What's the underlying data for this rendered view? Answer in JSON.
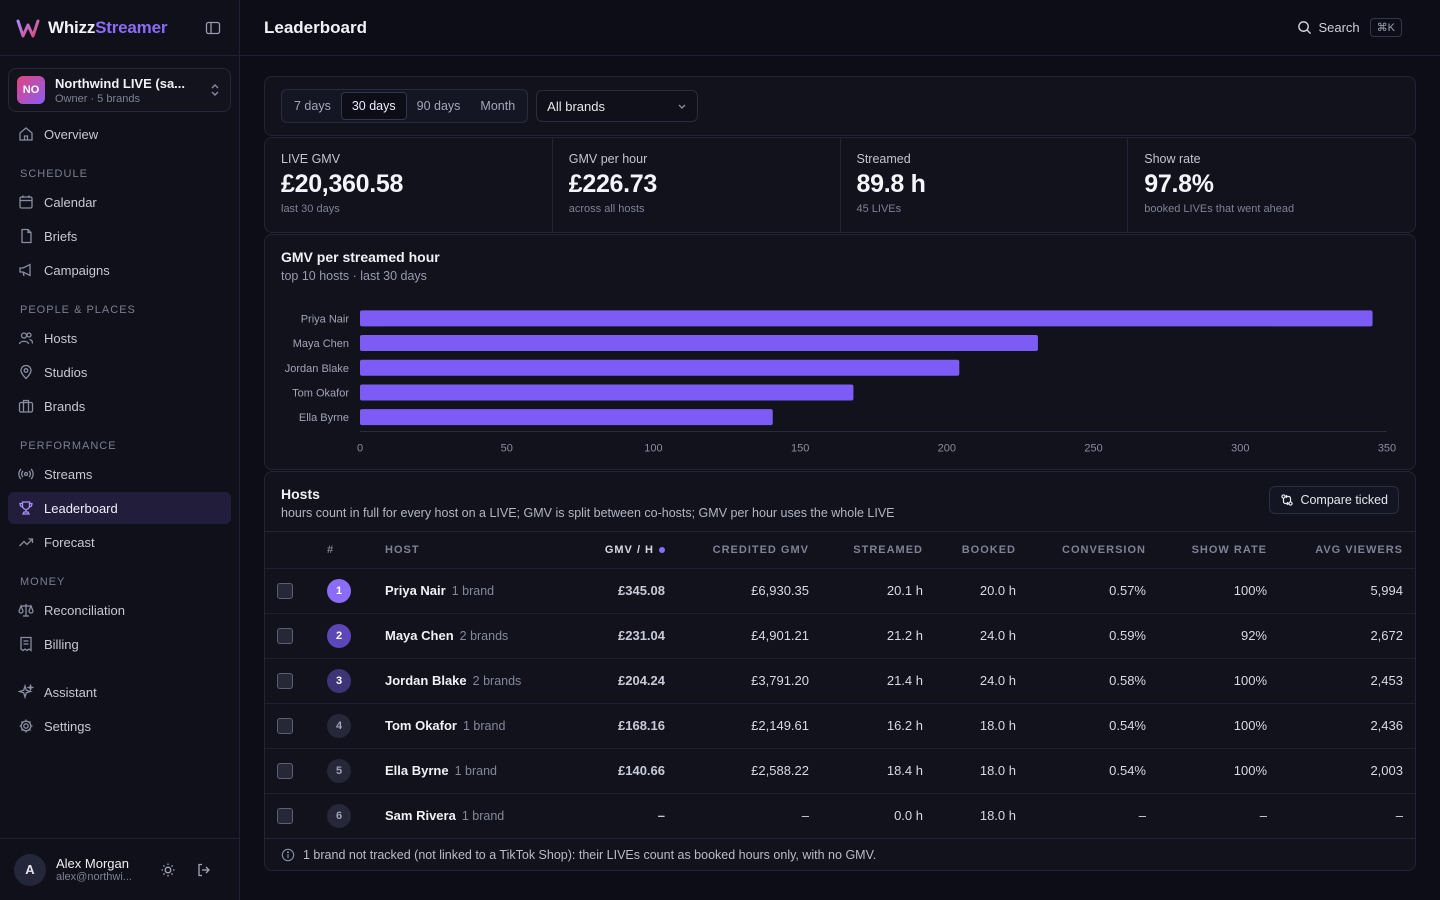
{
  "app": {
    "name_part1": "Whizz",
    "name_part2": "Streamer"
  },
  "org": {
    "initials": "NO",
    "name": "Northwind LIVE (sa...",
    "subtitle": "Owner · 5 brands"
  },
  "nav": {
    "overview": "Overview",
    "schedule_section": "SCHEDULE",
    "calendar": "Calendar",
    "briefs": "Briefs",
    "campaigns": "Campaigns",
    "people_section": "PEOPLE & PLACES",
    "hosts": "Hosts",
    "studios": "Studios",
    "brands": "Brands",
    "performance_section": "PERFORMANCE",
    "streams": "Streams",
    "leaderboard": "Leaderboard",
    "forecast": "Forecast",
    "money_section": "MONEY",
    "reconciliation": "Reconciliation",
    "billing": "Billing",
    "assistant": "Assistant",
    "settings": "Settings"
  },
  "user": {
    "initial": "A",
    "name": "Alex Morgan",
    "email": "alex@northwi..."
  },
  "topbar": {
    "title": "Leaderboard",
    "search_label": "Search",
    "search_shortcut": "⌘K"
  },
  "filters": {
    "periods": [
      "7 days",
      "30 days",
      "90 days",
      "Month"
    ],
    "active_period": "30 days",
    "brand_select": "All brands"
  },
  "kpis": [
    {
      "label": "LIVE GMV",
      "value": "£20,360.58",
      "sub": "last 30 days"
    },
    {
      "label": "GMV per hour",
      "value": "£226.73",
      "sub": "across all hosts"
    },
    {
      "label": "Streamed",
      "value": "89.8 h",
      "sub": "45 LIVEs"
    },
    {
      "label": "Show rate",
      "value": "97.8%",
      "sub": "booked LIVEs that went ahead"
    }
  ],
  "chart": {
    "title": "GMV per streamed hour",
    "subtitle": "top 10 hosts · last 30 days"
  },
  "chart_data": {
    "type": "bar",
    "orientation": "horizontal",
    "categories": [
      "Priya Nair",
      "Maya Chen",
      "Jordan Blake",
      "Tom Okafor",
      "Ella Byrne"
    ],
    "values": [
      345.08,
      231.04,
      204.24,
      168.16,
      140.66
    ],
    "xlim": [
      0,
      350
    ],
    "xticks": [
      0,
      50,
      100,
      150,
      200,
      250,
      300,
      350
    ],
    "bar_color": "#7c5cf5",
    "grid": false
  },
  "table": {
    "title": "Hosts",
    "subtitle": "hours count in full for every host on a LIVE; GMV is split between co-hosts; GMV per hour uses the whole LIVE",
    "compare_label": "Compare ticked",
    "columns": [
      "#",
      "HOST",
      "GMV / H",
      "CREDITED GMV",
      "STREAMED",
      "BOOKED",
      "CONVERSION",
      "SHOW RATE",
      "AVG VIEWERS"
    ],
    "rank_colors": [
      "#8b6cf6",
      "#5b47b8",
      "#3d3577",
      "#262839",
      "#262839",
      "#262839"
    ],
    "rows": [
      {
        "rank": "1",
        "host": "Priya Nair",
        "brands": "1 brand",
        "gmv_h": "£345.08",
        "credited": "£6,930.35",
        "streamed": "20.1 h",
        "booked": "20.0 h",
        "conversion": "0.57%",
        "show_rate": "100%",
        "viewers": "5,994"
      },
      {
        "rank": "2",
        "host": "Maya Chen",
        "brands": "2 brands",
        "gmv_h": "£231.04",
        "credited": "£4,901.21",
        "streamed": "21.2 h",
        "booked": "24.0 h",
        "conversion": "0.59%",
        "show_rate": "92%",
        "viewers": "2,672"
      },
      {
        "rank": "3",
        "host": "Jordan Blake",
        "brands": "2 brands",
        "gmv_h": "£204.24",
        "credited": "£3,791.20",
        "streamed": "21.4 h",
        "booked": "24.0 h",
        "conversion": "0.58%",
        "show_rate": "100%",
        "viewers": "2,453"
      },
      {
        "rank": "4",
        "host": "Tom Okafor",
        "brands": "1 brand",
        "gmv_h": "£168.16",
        "credited": "£2,149.61",
        "streamed": "16.2 h",
        "booked": "18.0 h",
        "conversion": "0.54%",
        "show_rate": "100%",
        "viewers": "2,436"
      },
      {
        "rank": "5",
        "host": "Ella Byrne",
        "brands": "1 brand",
        "gmv_h": "£140.66",
        "credited": "£2,588.22",
        "streamed": "18.4 h",
        "booked": "18.0 h",
        "conversion": "0.54%",
        "show_rate": "100%",
        "viewers": "2,003"
      },
      {
        "rank": "6",
        "host": "Sam Rivera",
        "brands": "1 brand",
        "gmv_h": "–",
        "credited": "–",
        "streamed": "0.0 h",
        "booked": "18.0 h",
        "conversion": "–",
        "show_rate": "–",
        "viewers": "–"
      }
    ],
    "footnote": "1 brand not tracked (not linked to a TikTok Shop): their LIVEs count as booked hours only, with no GMV."
  }
}
